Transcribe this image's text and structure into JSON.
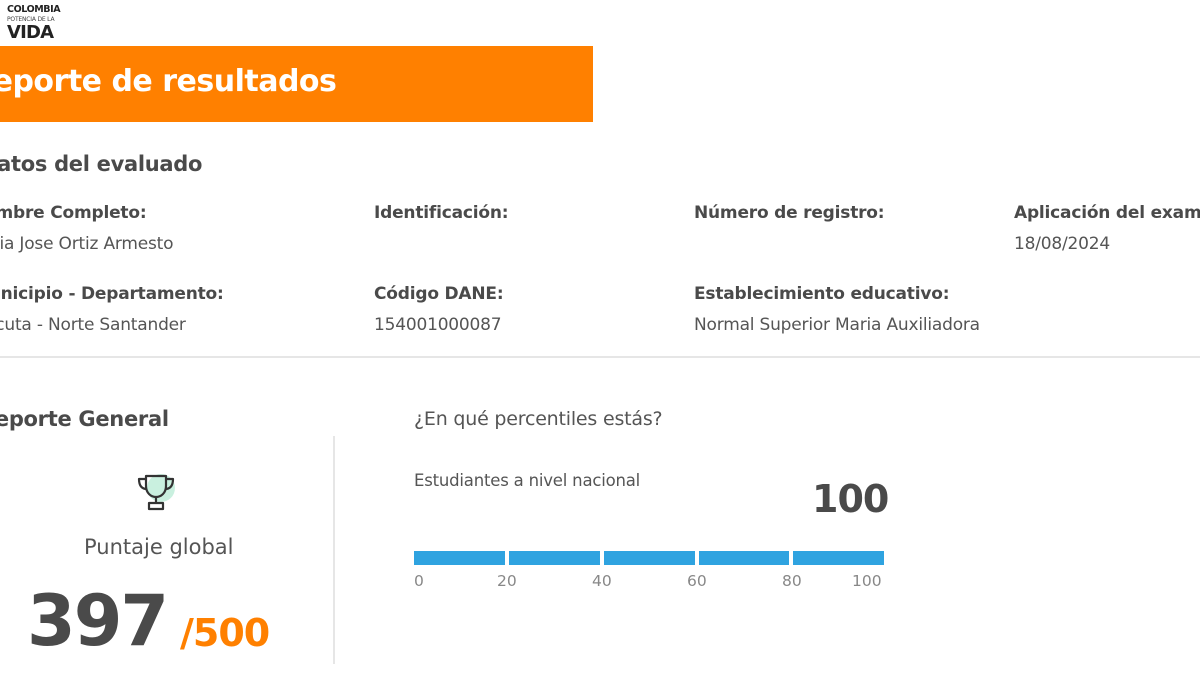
{
  "logo": {
    "line1": "COLOMBIA",
    "line2": "POTENCIA DE LA",
    "line3": "VIDA"
  },
  "header": {
    "title": "Reporte de resultados"
  },
  "evaluado": {
    "section_title": "Datos del evaluado",
    "nombre_label": "Nombre Completo:",
    "nombre_value": "Maria Jose Ortiz Armesto",
    "identificacion_label": "Identificación:",
    "identificacion_value": "",
    "registro_label": "Número de registro:",
    "registro_value": "",
    "aplicacion_label": "Aplicación del examen:",
    "aplicacion_value": "18/08/2024",
    "municipio_label": "Municipio - Departamento:",
    "municipio_value": "Cucuta -  Norte Santander",
    "dane_label": "Código DANE:",
    "dane_value": "154001000087",
    "establecimiento_label": "Establecimiento educativo:",
    "establecimiento_value": "Normal Superior Maria Auxiliadora"
  },
  "reporte_general": {
    "section_title": "Reporte General",
    "trophy_icon": "trophy-icon",
    "puntaje_label": "Puntaje global",
    "score": "397",
    "score_max": "/500"
  },
  "percentiles": {
    "question": "¿En qué percentiles estás?",
    "nivel_label": "Estudiantes a nivel nacional",
    "value": "100",
    "fraction_filled": 1.0,
    "bar_color": "#2fa3e0",
    "ticks": [
      "0",
      "20",
      "40",
      "60",
      "80",
      "100"
    ]
  },
  "colors": {
    "accent": "#ff8000",
    "text": "#4a4a4a"
  }
}
